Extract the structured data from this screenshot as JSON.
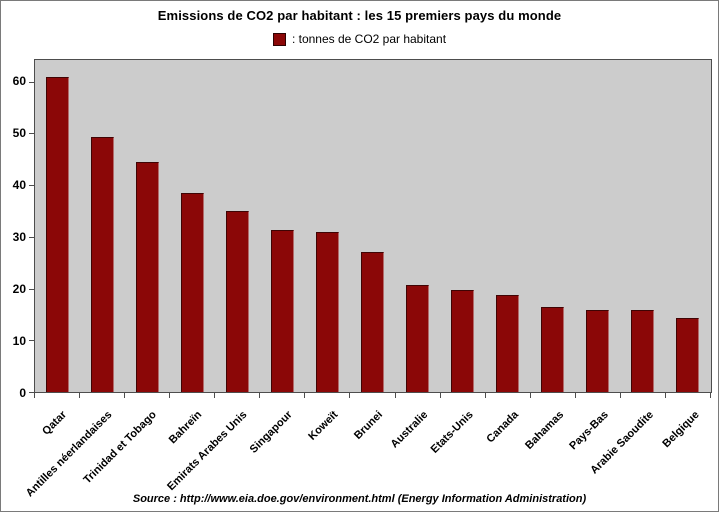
{
  "chart_data": {
    "type": "bar",
    "title": "Emissions de CO2 par habitant : les 15 premiers pays du monde",
    "legend": {
      "swatch": "dark-red-square",
      "label": ": tonnes de CO2 par habitant",
      "position": "top-center"
    },
    "categories": [
      "Qatar",
      "Antilles néerlandaises",
      "Trinidad et Tobago",
      "Bahreïn",
      "Emirats Arabes Unis",
      "Singapour",
      "Koweït",
      "Brunei",
      "Australie",
      "Etats-Unis",
      "Canada",
      "Bahamas",
      "Pays-Bas",
      "Arabie Saoudite",
      "Belgique"
    ],
    "values": [
      61.0,
      49.3,
      44.4,
      38.5,
      35.0,
      31.4,
      30.9,
      27.0,
      20.6,
      19.8,
      18.8,
      16.5,
      15.9,
      15.8,
      14.3
    ],
    "xlabel": "",
    "ylabel": "",
    "yticks": [
      0,
      10,
      20,
      30,
      40,
      50,
      60
    ],
    "ylim": [
      0,
      64.2
    ],
    "grid": false,
    "plot_background": "#CCCCCC",
    "source": "Source : http://www.eia.doe.gov/environment.html (Energy Information Administration)"
  },
  "colors": {
    "bar_fill": "#8B0707",
    "bar_edge_dark": "#3F0404",
    "bar_edge_light": "#B26B6B",
    "plot_background": "#CCCCCC",
    "plot_border": "#4D4D4D",
    "page_background": "#FFFFFF",
    "frame_border": "#7A7A7A",
    "text": "#000000"
  }
}
